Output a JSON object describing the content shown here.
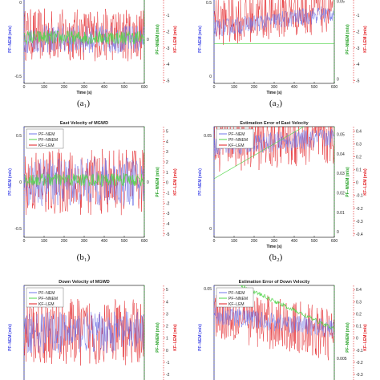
{
  "colors": {
    "pf_nem": "#6f74e8",
    "pf_nnem": "#52d64a",
    "kf_lem": "#e2191d",
    "axis_blue": "#3e45e6",
    "axis_green": "#1c9d1c",
    "axis_red": "#e2191d"
  },
  "legend_labels": [
    "PF−NEM",
    "PF−NNEM",
    "KF−LEM"
  ],
  "chart_data": [
    {
      "id": "a1",
      "type": "line",
      "title": "",
      "caption": "(a₁)",
      "xlabel": "Time (s)",
      "ylabel_left": "PF−NEM (m/s)",
      "ylabel_mid": "PF−NNEM (m/s)",
      "ylabel_right": "KF−LEM (m/s)",
      "x_ticks": [
        0,
        100,
        200,
        300,
        400,
        500,
        600
      ],
      "xlim": [
        0,
        600
      ],
      "left_ticks": [
        "0",
        "-0.5"
      ],
      "left_tick_values": [
        0,
        -0.5
      ],
      "mid_ticks": [
        "0"
      ],
      "mid_tick_values": [
        0
      ],
      "right_ticks": [
        "0",
        "-1",
        "-2",
        "-3",
        "-4",
        "-5"
      ],
      "right_tick_values": [
        0,
        -1,
        -2,
        -3,
        -4,
        -5
      ],
      "show_legend": false,
      "series": [
        {
          "name": "PF−NEM",
          "trend": [
            0,
            0
          ],
          "amp": 0.16
        },
        {
          "name": "PF−NNEM",
          "trend": [
            0.02,
            0.02
          ],
          "amp": 0.08
        },
        {
          "name": "KF−LEM",
          "trend": [
            0.05,
            0.05
          ],
          "amp": 0.3
        }
      ]
    },
    {
      "id": "a2",
      "type": "line",
      "title": "",
      "caption": "(a₂)",
      "xlabel": "Time (s)",
      "ylabel_left": "PF−NEM (m/s)",
      "ylabel_mid": "PF−NNEM (m/s)",
      "ylabel_right": "KF−LEM (m/s)",
      "x_ticks": [
        0,
        100,
        200,
        300,
        400,
        500,
        600
      ],
      "xlim": [
        0,
        600
      ],
      "left_ticks": [
        "0.5",
        "0"
      ],
      "left_tick_values": [
        0.5,
        0
      ],
      "mid_ticks": [
        "0.05",
        "0"
      ],
      "mid_tick_values": [
        0.05,
        0
      ],
      "right_ticks": [
        "0",
        "-1",
        "-2",
        "-3",
        "-4",
        "-5"
      ],
      "right_tick_values": [
        0,
        -1,
        -2,
        -3,
        -4,
        -5
      ],
      "show_legend": false,
      "series": [
        {
          "name": "PF−NEM",
          "trend": [
            0.12,
            0.3
          ],
          "amp": 0.1
        },
        {
          "name": "PF−NNEM",
          "trend": [
            -0.05,
            -0.05
          ],
          "amp": 0.0
        },
        {
          "name": "KF−LEM",
          "trend": [
            0.2,
            0.36
          ],
          "amp": 0.28
        }
      ]
    },
    {
      "id": "b1",
      "type": "line",
      "title": "East Velocity of MGWD",
      "caption": "(b₁)",
      "xlabel": "",
      "ylabel_left": "PF−NEM (m/s)",
      "ylabel_mid": "PF−NNEM (m/s)",
      "ylabel_right": "KF−LEM (m/s)",
      "x_ticks": [
        0,
        100,
        200,
        300,
        400,
        500,
        600
      ],
      "xlim": [
        0,
        600
      ],
      "left_ticks": [
        "0.5",
        "0",
        "-0.5"
      ],
      "left_tick_values": [
        0.5,
        0,
        -0.5
      ],
      "mid_ticks": [
        "0"
      ],
      "mid_tick_values": [
        0
      ],
      "right_ticks": [
        "5",
        "4",
        "3",
        "2",
        "1",
        "0",
        "-1",
        "-2",
        "-3",
        "-4",
        "-5"
      ],
      "right_tick_values": [
        5,
        4,
        3,
        2,
        1,
        0,
        -1,
        -2,
        -3,
        -4,
        -5
      ],
      "show_legend": true,
      "series": [
        {
          "name": "PF−NEM",
          "trend": [
            0,
            0
          ],
          "amp": 0.22
        },
        {
          "name": "PF−NNEM",
          "trend": [
            0.02,
            0.02
          ],
          "amp": 0.06
        },
        {
          "name": "KF−LEM",
          "trend": [
            0,
            0
          ],
          "amp": 0.3
        }
      ]
    },
    {
      "id": "b2",
      "type": "line",
      "title": "Estimation Error of East Velocity",
      "caption": "(b₂)",
      "xlabel": "Time (s)",
      "ylabel_left": "PF−NEM (m/s)",
      "ylabel_mid": "PF−NNEM (m/s)",
      "ylabel_right": "KF−LEM (m/s)",
      "x_ticks": [
        0,
        100,
        200,
        300,
        400,
        500,
        600
      ],
      "xlim": [
        0,
        600
      ],
      "left_ticks": [
        "0.05",
        "0"
      ],
      "left_tick_values": [
        0.05,
        0
      ],
      "mid_ticks": [
        "0.05",
        "0.04",
        "0.03",
        "0.02",
        "0.01",
        "0"
      ],
      "mid_tick_values": [
        0.05,
        0.04,
        0.03,
        0.02,
        0.01,
        0
      ],
      "right_ticks": [
        "0.4",
        "0.3",
        "0.2",
        "0.1",
        "0",
        "-0.1",
        "-0.2",
        "-0.3",
        "-0.4"
      ],
      "right_tick_values": [
        0.4,
        0.3,
        0.2,
        0.1,
        0,
        -0.1,
        -0.2,
        -0.3,
        -0.4
      ],
      "show_legend": true,
      "series": [
        {
          "name": "PF−NEM",
          "trend": [
            0.32,
            0.4
          ],
          "amp": 0.09
        },
        {
          "name": "PF−NNEM",
          "trend": [
            0.03,
            0.66
          ],
          "amp": 0.0
        },
        {
          "name": "KF−LEM",
          "trend": [
            0.35,
            0.4
          ],
          "amp": 0.26
        }
      ]
    },
    {
      "id": "c1",
      "type": "line",
      "title": "Down Velocity of MGWD",
      "caption": "",
      "xlabel": "",
      "ylabel_left": "PF−NEM (m/s)",
      "ylabel_mid": "PF−NNEM (m/s)",
      "ylabel_right": "KF−LEM (m/s)",
      "x_ticks": [],
      "xlim": [
        0,
        600
      ],
      "left_ticks": [],
      "left_tick_values": [],
      "mid_ticks": [],
      "mid_tick_values": [],
      "right_ticks": [
        "5",
        "4",
        "3",
        "2",
        "1",
        "0",
        "-1",
        "-2",
        "-3"
      ],
      "right_tick_values": [
        5,
        4,
        3,
        2,
        1,
        0,
        -1,
        -2,
        -3
      ],
      "show_legend": true,
      "series": [
        {
          "name": "PF−NEM",
          "trend": [
            0.05,
            0.05
          ],
          "amp": 0.2
        },
        {
          "name": "PF−NNEM",
          "trend": [
            0.62,
            0.62
          ],
          "amp": 0.04
        },
        {
          "name": "KF−LEM",
          "trend": [
            0.05,
            0.05
          ],
          "amp": 0.32
        }
      ]
    },
    {
      "id": "c2",
      "type": "line",
      "title": "Estimation Error of Down Velocity",
      "caption": "",
      "xlabel": "",
      "ylabel_left": "PF−NEM (m/s)",
      "ylabel_mid": "PF−NNEM (m/s)",
      "ylabel_right": "KF−LEM (m/s)",
      "x_ticks": [],
      "xlim": [
        0,
        600
      ],
      "left_ticks": [
        "0.05"
      ],
      "left_tick_values": [
        0.05
      ],
      "mid_ticks": [
        "0.005"
      ],
      "mid_tick_values": [
        0.005
      ],
      "right_ticks": [
        "0.4",
        "0.3",
        "0.2",
        "0.1",
        "0",
        "-0.1",
        "-0.2",
        "-0.3",
        "-0.4"
      ],
      "right_tick_values": [
        0.4,
        0.3,
        0.2,
        0.1,
        0,
        -0.1,
        -0.2,
        -0.3,
        -0.4
      ],
      "show_legend": true,
      "series": [
        {
          "name": "PF−NEM",
          "trend": [
            0.22,
            0.08
          ],
          "amp": 0.09
        },
        {
          "name": "PF−NNEM",
          "trend": [
            0.62,
            0.08
          ],
          "amp": 0.02
        },
        {
          "name": "KF−LEM",
          "trend": [
            0.25,
            0.02
          ],
          "amp": 0.26
        }
      ]
    }
  ]
}
